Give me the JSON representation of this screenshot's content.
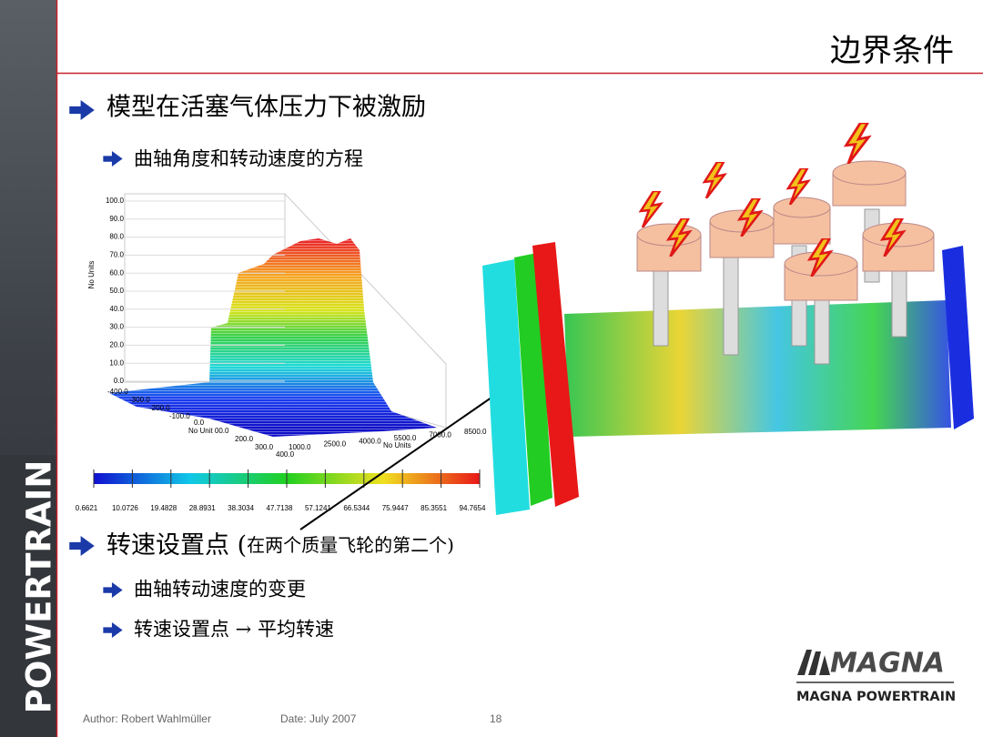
{
  "header": {
    "title": "边界条件"
  },
  "bullets": [
    {
      "text": "模型在活塞气体压力下被激励",
      "sub": [
        "曲轴角度和转动速度的方程"
      ]
    },
    {
      "text": "转速设置点 (",
      "note": "在两个质量飞轮的第二个)",
      "sub": [
        "曲轴转动速度的变更",
        "转速设置点 → 平均转速"
      ]
    }
  ],
  "figure": {
    "y_label": "No Units",
    "y_ticks": [
      "100.0",
      "90.0",
      "80.0",
      "70.0",
      "60.0",
      "50.0",
      "40.0",
      "30.0",
      "20.0",
      "10.0",
      "0.0"
    ],
    "depth_ticks": [
      "-400.0",
      "-300.0",
      "-200.0",
      "-100.0",
      "0.0",
      "No Unit 00.0",
      "200.0",
      "300.0",
      "400.0"
    ],
    "x_ticks": [
      "1000.0",
      "2500.0",
      "4000.0",
      "5500.0",
      "7000.0",
      "8500.0"
    ],
    "x_label": "No Units",
    "colorbar_labels": [
      "0.6621",
      "10.0726",
      "19.4828",
      "28.8931",
      "38.3034",
      "47.7138",
      "57.1241",
      "66.5344",
      "75.9447",
      "85.3551",
      "94.7654"
    ]
  },
  "logo": {
    "brand": "MAGNA",
    "subtitle": "MAGNA POWERTRAIN"
  },
  "sidebar": "POWERTRAIN",
  "footer": {
    "author": "Author: Robert Wahlmüller",
    "date": "Date: July 2007",
    "page": "18"
  }
}
